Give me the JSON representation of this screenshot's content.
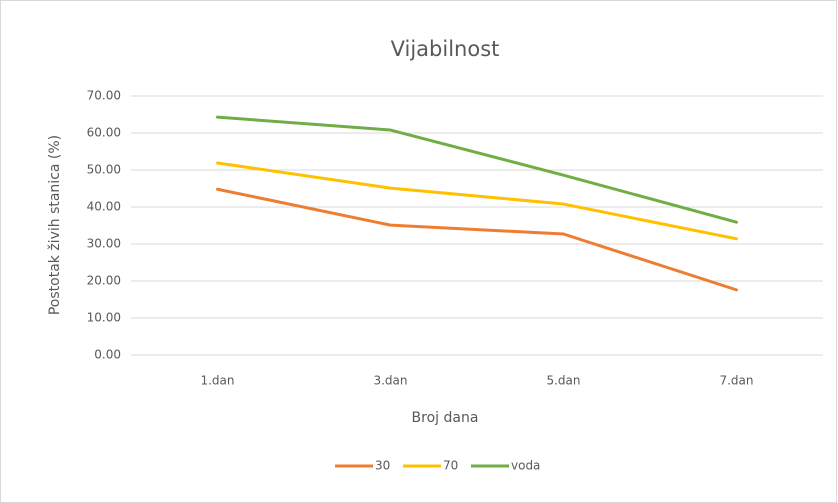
{
  "chart_data": {
    "type": "line",
    "title": "Vijabilnost",
    "x_label": "Broj dana",
    "y_label": "Postotak živih stanica (%)",
    "categories": [
      "1.dan",
      "3.dan",
      "5.dan",
      "7.dan"
    ],
    "series": [
      {
        "name": "30",
        "color": "#ed7d31",
        "values": [
          44.8,
          35.1,
          32.7,
          17.6
        ]
      },
      {
        "name": "70",
        "color": "#ffc000",
        "values": [
          51.9,
          45.1,
          40.8,
          31.4
        ]
      },
      {
        "name": "voda",
        "color": "#70ad47",
        "values": [
          64.3,
          60.8,
          48.6,
          35.9
        ]
      }
    ],
    "ylim": [
      0,
      70
    ],
    "yticks": [
      {
        "value": 0,
        "label": "0.00"
      },
      {
        "value": 10,
        "label": "10.00"
      },
      {
        "value": 20,
        "label": "20.00"
      },
      {
        "value": 30,
        "label": "30.00"
      },
      {
        "value": 40,
        "label": "40.00"
      },
      {
        "value": 50,
        "label": "50.00"
      },
      {
        "value": 60,
        "label": "60.00"
      },
      {
        "value": 70,
        "label": "70.00"
      }
    ],
    "grid": true,
    "legend": "bottom"
  }
}
